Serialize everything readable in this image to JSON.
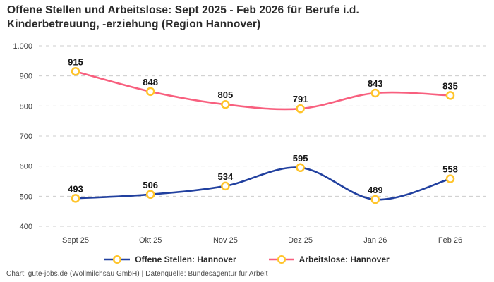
{
  "title": {
    "line1": "Offene Stellen und Arbeitslose: Sept 2025 - Feb 2026 für Berufe i.d.",
    "line2": "Kinderbetreuung, -erziehung (Region Hannover)"
  },
  "chart_data": {
    "type": "line",
    "x": [
      "Sept 25",
      "Okt 25",
      "Nov 25",
      "Dez 25",
      "Jan 26",
      "Feb 26"
    ],
    "series": [
      {
        "name": "Offene Stellen: Hannover",
        "values": [
          493,
          506,
          534,
          595,
          489,
          558
        ],
        "color": "#21409f"
      },
      {
        "name": "Arbeitslose: Hannover",
        "values": [
          915,
          848,
          805,
          791,
          843,
          835
        ],
        "color": "#f85f7e"
      }
    ],
    "marker": {
      "shape": "circle",
      "fill": "#ffffff",
      "stroke": "#ffc42a"
    },
    "ylim": [
      400,
      1000
    ],
    "ytick_values": [
      1000,
      900,
      800,
      700,
      600,
      500,
      400
    ],
    "ytick_labels": [
      "1.000",
      "900",
      "800",
      "700",
      "600",
      "500",
      "400"
    ],
    "grid": "horizontal-dashed",
    "grid_color": "#cccccc",
    "data_labels": true,
    "legend_position": "bottom",
    "curve": "smooth"
  },
  "footer": {
    "text": "Chart: gute-jobs.de (Wollmilchsau GmbH) | Datenquelle: Bundesagentur für Arbeit"
  }
}
